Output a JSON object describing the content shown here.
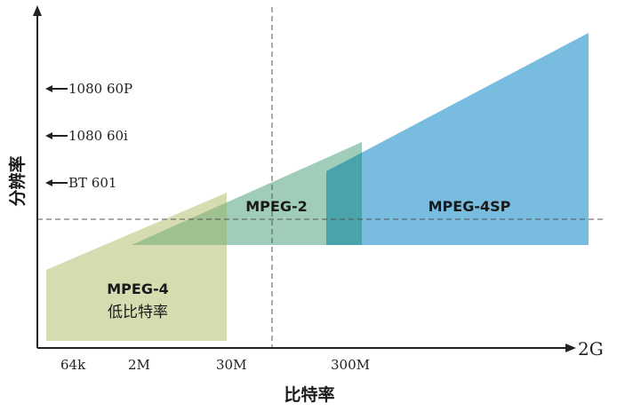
{
  "axes": {
    "x_title": "比特率",
    "y_title": "分辨率",
    "x_end_label": "2G",
    "x_ticks": [
      "64k",
      "2M",
      "30M",
      "300M"
    ]
  },
  "resolutions": [
    {
      "label": "1080 60P"
    },
    {
      "label": "1080 60i"
    },
    {
      "label": "BT 601"
    }
  ],
  "regions": {
    "mpeg4": {
      "label": "MPEG-4",
      "sublabel": "低比特率",
      "color": "#d6dcb0"
    },
    "mpeg2": {
      "label": "MPEG-2",
      "color": "#8ec4ad"
    },
    "mpeg4sp": {
      "label": "MPEG-4SP",
      "color": "#78bce0"
    }
  },
  "colors": {
    "axis": "#222222",
    "dashed": "#555555",
    "overlap_mpeg4_mpeg2": "#9fc08f",
    "overlap_mpeg2_mpeg4sp": "#4aa3aa"
  }
}
